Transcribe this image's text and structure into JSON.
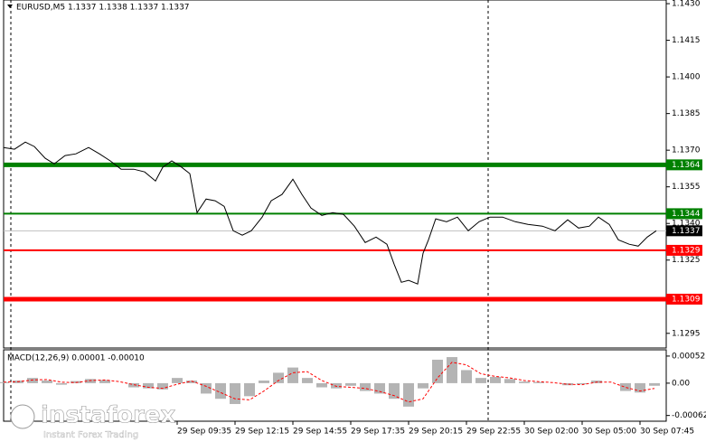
{
  "chart_data": [
    {
      "type": "line",
      "title": "EURUSD,M5  1.1337 1.1338 1.1337 1.1337",
      "color": "#000000",
      "x": [
        0,
        6,
        12,
        17,
        23,
        28,
        34,
        40,
        47,
        53,
        59,
        65,
        72,
        78,
        84,
        88,
        93,
        98,
        103,
        107,
        112,
        117,
        122,
        127,
        132,
        137,
        143,
        148,
        154,
        160,
        165,
        170,
        176,
        182,
        188,
        194,
        200,
        206,
        212,
        216,
        220,
        224,
        229,
        232,
        235,
        239,
        245,
        251,
        257,
        263,
        269,
        276,
        283,
        290,
        298,
        305,
        312,
        318,
        324,
        329,
        335,
        340,
        346,
        351,
        356,
        361
      ],
      "values": [
        1.13711,
        1.13704,
        1.13733,
        1.13715,
        1.13667,
        1.13644,
        1.13678,
        1.13685,
        1.13711,
        1.13685,
        1.13656,
        1.13622,
        1.13622,
        1.13611,
        1.13574,
        1.1363,
        1.13656,
        1.13633,
        1.13604,
        1.13444,
        1.135,
        1.13493,
        1.1347,
        1.1337,
        1.13352,
        1.1337,
        1.13426,
        1.13493,
        1.13519,
        1.13581,
        1.13519,
        1.13463,
        1.13433,
        1.13444,
        1.13437,
        1.13389,
        1.13322,
        1.13344,
        1.13315,
        1.13233,
        1.13159,
        1.13167,
        1.13152,
        1.13278,
        1.13333,
        1.13419,
        1.13407,
        1.13426,
        1.1337,
        1.13407,
        1.13426,
        1.13426,
        1.13407,
        1.13396,
        1.13389,
        1.1337,
        1.13415,
        1.13381,
        1.13389,
        1.13426,
        1.13396,
        1.13333,
        1.13315,
        1.13307,
        1.13344,
        1.1337
      ],
      "xlim": [
        0,
        366.5
      ],
      "ylim": [
        1.1289,
        1.14315
      ],
      "yticks": [
        {
          "value": 1.143,
          "label": "1.1430"
        },
        1.1415,
        {
          "value": 1.14,
          "label": "1.1400"
        },
        1.1385,
        {
          "value": 1.137,
          "label": "1.1370"
        },
        1.1355,
        {
          "value": 1.134,
          "label": "1.1340"
        },
        1.1325,
        1.1295
      ],
      "xticks": [
        {
          "value": 96,
          "label": "29 Sep 09:35"
        },
        {
          "value": 128,
          "label": "29 Sep 12:15"
        },
        {
          "value": 160,
          "label": "29 Sep 14:55"
        },
        {
          "value": 192,
          "label": "29 Sep 17:35"
        },
        {
          "value": 224,
          "label": "29 Sep 20:15"
        },
        {
          "value": 256,
          "label": "29 Sep 22:55"
        },
        {
          "value": 288,
          "label": "30 Sep 02:00"
        },
        {
          "value": 320,
          "label": "30 Sep 05:00"
        },
        {
          "value": 352,
          "label": "30 Sep 07:45"
        }
      ],
      "levels": [
        {
          "value": 1.1364,
          "color": "#008000",
          "width": 5
        },
        {
          "value": 1.1344,
          "color": "#008000",
          "width": 2
        },
        {
          "value": 1.1329,
          "color": "#ff0000",
          "width": 2
        },
        {
          "value": 1.1309,
          "color": "#ff0000",
          "width": 5
        }
      ],
      "current": {
        "value": 1.1337,
        "color": "#000000"
      }
    },
    {
      "type": "macd",
      "title": "MACD(12,26,9) 0.00001 -0.00010",
      "x": [
        0,
        8,
        16,
        24,
        32,
        40,
        48,
        56,
        64,
        72,
        80,
        88,
        96,
        104,
        112,
        120,
        128,
        136,
        144,
        152,
        160,
        168,
        176,
        184,
        192,
        200,
        208,
        216,
        224,
        232,
        240,
        248,
        256,
        264,
        272,
        280,
        288,
        296,
        304,
        312,
        320,
        328,
        336,
        344,
        352,
        360
      ],
      "histogram": {
        "color": "#b4b4b4",
        "values": [
          2e-05,
          5e-05,
          0.0001,
          5e-05,
          -3e-05,
          4e-05,
          8e-05,
          6e-05,
          0,
          -8e-05,
          -0.0001,
          -0.00012,
          0.0001,
          5e-05,
          -0.0002,
          -0.0003,
          -0.0004,
          -0.00025,
          5e-05,
          0.0002,
          0.0003,
          0.0001,
          -8e-05,
          -0.0001,
          -5e-05,
          -0.00015,
          -0.0002,
          -0.0003,
          -0.00045,
          -0.0001,
          0.00045,
          0.0005,
          0.00025,
          0.0001,
          0.00012,
          8e-05,
          3e-05,
          2e-05,
          0,
          -4e-05,
          -2e-05,
          5e-05,
          0,
          -0.00015,
          -0.00018,
          -5e-05
        ]
      },
      "signal": {
        "color": "#ff0000",
        "values": [
          2e-05,
          3e-05,
          6e-05,
          7e-05,
          2e-05,
          1e-05,
          5e-05,
          6e-05,
          3e-05,
          -3e-05,
          -8e-05,
          -0.0001,
          -2e-05,
          4e-05,
          -6e-05,
          -0.00018,
          -0.0003,
          -0.00032,
          -0.00015,
          5e-05,
          0.0002,
          0.00022,
          5e-05,
          -6e-05,
          -8e-05,
          -0.0001,
          -0.00016,
          -0.00024,
          -0.00036,
          -0.0003,
          0.0001,
          0.0004,
          0.00035,
          0.00018,
          0.00013,
          0.0001,
          5e-05,
          3e-05,
          1e-05,
          -2e-05,
          -3e-05,
          2e-05,
          2e-05,
          -8e-05,
          -0.00015,
          -0.0001
        ]
      },
      "xlim": [
        0,
        366.5
      ],
      "ylim": [
        -0.00073,
        0.00064
      ],
      "yticks": [
        0.00052,
        {
          "value": 0,
          "label": "0.00"
        },
        -0.00062
      ]
    }
  ],
  "watermark": {
    "brand": "instaforex",
    "tagline": "Instant Forex Trading"
  }
}
